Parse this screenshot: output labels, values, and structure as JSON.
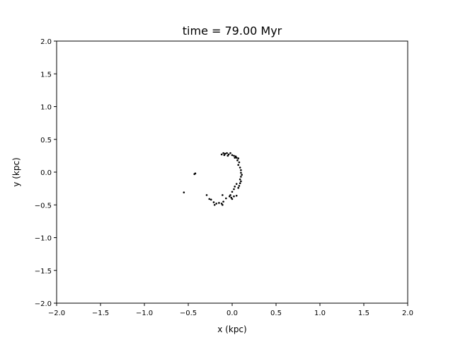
{
  "chart_data": {
    "type": "scatter",
    "title": "time = 79.00 Myr",
    "xlabel": "x (kpc)",
    "ylabel": "y (kpc)",
    "xlim": [
      -2.0,
      2.0
    ],
    "ylim": [
      -2.0,
      2.0
    ],
    "grid": false,
    "marker_color": "#000000",
    "x_ticks": [
      -2.0,
      -1.5,
      -1.0,
      -0.5,
      0.0,
      0.5,
      1.0,
      1.5,
      2.0
    ],
    "x_tick_labels": [
      "−2.0",
      "−1.5",
      "−1.0",
      "−0.5",
      "0.0",
      "0.5",
      "1.0",
      "1.5",
      "2.0"
    ],
    "y_ticks": [
      2.0,
      1.5,
      1.0,
      0.5,
      0.0,
      -0.5,
      -1.0,
      -1.5,
      -2.0
    ],
    "y_tick_labels": [
      "2.0",
      "1.5",
      "1.0",
      "0.5",
      "0.0",
      "−0.5",
      "−1.0",
      "−1.5",
      "−2.0"
    ],
    "points": [
      [
        -0.12,
        0.27
      ],
      [
        -0.1,
        0.29
      ],
      [
        -0.08,
        0.28
      ],
      [
        -0.06,
        0.29
      ],
      [
        -0.04,
        0.27
      ],
      [
        -0.02,
        0.29
      ],
      [
        0.0,
        0.26
      ],
      [
        0.02,
        0.25
      ],
      [
        0.04,
        0.24
      ],
      [
        0.05,
        0.22
      ],
      [
        0.07,
        0.21
      ],
      [
        -0.09,
        0.26
      ],
      [
        -0.05,
        0.25
      ],
      [
        0.03,
        0.22
      ],
      [
        0.06,
        0.18
      ],
      [
        0.08,
        0.15
      ],
      [
        0.07,
        0.11
      ],
      [
        0.09,
        0.07
      ],
      [
        0.1,
        0.03
      ],
      [
        0.1,
        -0.01
      ],
      [
        0.11,
        -0.04
      ],
      [
        0.1,
        -0.07
      ],
      [
        0.09,
        -0.11
      ],
      [
        0.1,
        -0.14
      ],
      [
        0.09,
        -0.17
      ],
      [
        0.08,
        -0.21
      ],
      [
        0.07,
        -0.24
      ],
      [
        0.05,
        -0.18
      ],
      [
        0.03,
        -0.22
      ],
      [
        0.02,
        -0.26
      ],
      [
        0.0,
        -0.3
      ],
      [
        -0.02,
        -0.35
      ],
      [
        0.02,
        -0.37
      ],
      [
        0.05,
        -0.36
      ],
      [
        -0.01,
        -0.39
      ],
      [
        -0.03,
        -0.37
      ],
      [
        0.0,
        -0.41
      ],
      [
        -0.07,
        -0.4
      ],
      [
        -0.11,
        -0.35
      ],
      [
        -0.1,
        -0.45
      ],
      [
        -0.12,
        -0.48
      ],
      [
        -0.11,
        -0.5
      ],
      [
        -0.15,
        -0.47
      ],
      [
        -0.18,
        -0.48
      ],
      [
        -0.2,
        -0.5
      ],
      [
        -0.21,
        -0.46
      ],
      [
        -0.24,
        -0.42
      ],
      [
        -0.26,
        -0.41
      ],
      [
        -0.29,
        -0.35
      ],
      [
        -0.42,
        -0.02
      ],
      [
        -0.43,
        -0.03
      ],
      [
        -0.55,
        -0.31
      ]
    ]
  }
}
